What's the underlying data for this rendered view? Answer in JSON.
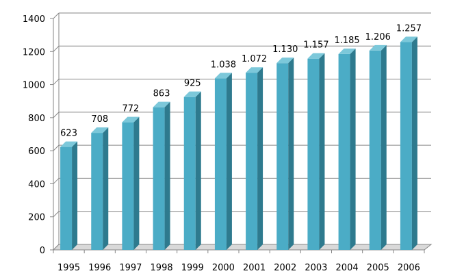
{
  "chart_data": {
    "type": "bar",
    "title": "",
    "xlabel": "",
    "ylabel": "",
    "categories": [
      "1995",
      "1996",
      "1997",
      "1998",
      "1999",
      "2000",
      "2001",
      "2002",
      "2003",
      "2004",
      "2005",
      "2006"
    ],
    "values": [
      623,
      708,
      772,
      863,
      925,
      1038,
      1072,
      1130,
      1157,
      1185,
      1206,
      1257
    ],
    "data_labels": [
      "623",
      "708",
      "772",
      "863",
      "925",
      "1.038",
      "1.072",
      "1.130",
      "1.157",
      "1.185",
      "1.206",
      "1.257"
    ],
    "ylim": [
      0,
      1400
    ],
    "yticks": [
      0,
      200,
      400,
      600,
      800,
      1000,
      1200,
      1400
    ],
    "grid": true,
    "legend": "none",
    "style": "3d-column"
  },
  "colors": {
    "bar_front": "#4BACC6",
    "bar_side": "#2E7A8E",
    "bar_top": "#7CC8DA",
    "gridline": "#868686",
    "axis": "#868686",
    "floor": "#D9D9D9"
  }
}
